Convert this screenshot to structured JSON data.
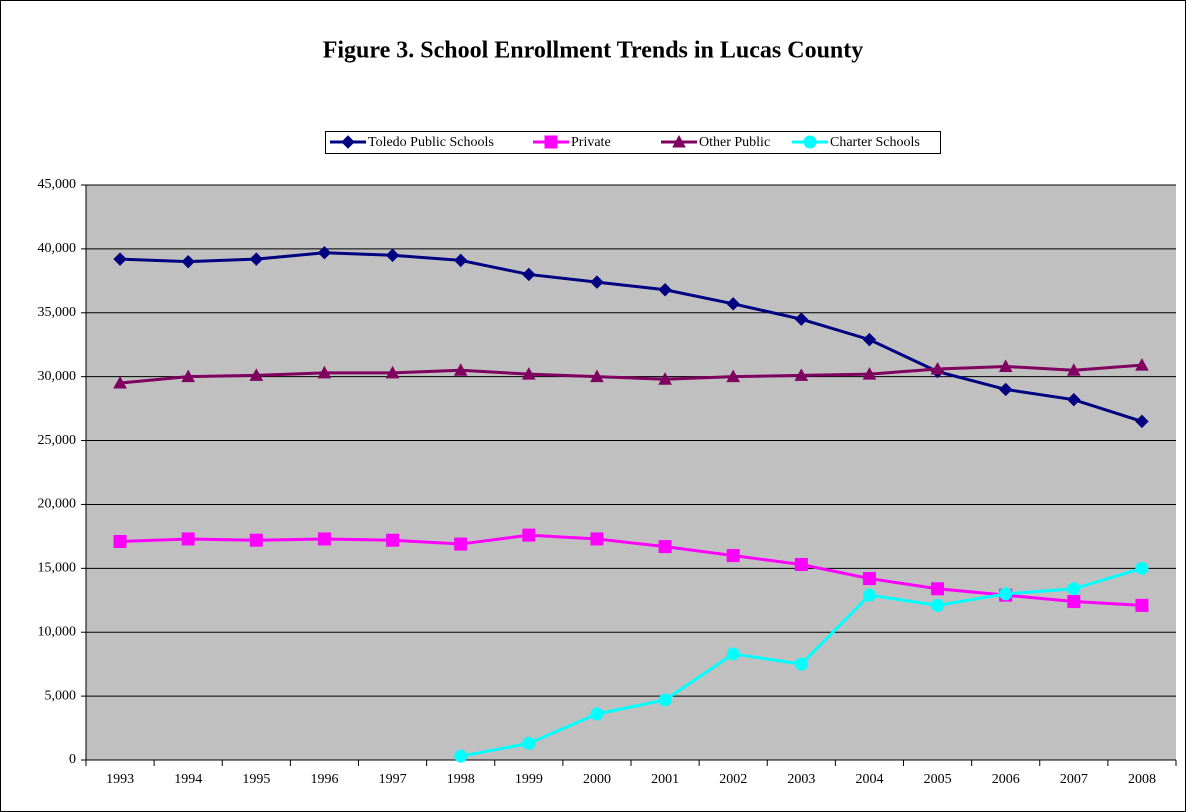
{
  "chart_data": {
    "type": "line",
    "title": "Figure 3. School Enrollment Trends in Lucas County",
    "categories": [
      "1993",
      "1994",
      "1995",
      "1996",
      "1997",
      "1998",
      "1999",
      "2000",
      "2001",
      "2002",
      "2003",
      "2004",
      "2005",
      "2006",
      "2007",
      "2008"
    ],
    "series": [
      {
        "name": "Toledo Public Schools",
        "color": "#000080",
        "marker": "diamond",
        "values": [
          39200,
          39000,
          39200,
          39700,
          39500,
          39100,
          38000,
          37400,
          36800,
          35700,
          34500,
          32900,
          30400,
          29000,
          28200,
          26500
        ]
      },
      {
        "name": "Private",
        "color": "#ff00ff",
        "marker": "square",
        "values": [
          17100,
          17300,
          17200,
          17300,
          17200,
          16900,
          17600,
          17300,
          16700,
          16000,
          15300,
          14200,
          13400,
          12900,
          12400,
          12100
        ]
      },
      {
        "name": "Other Public",
        "color": "#800060",
        "marker": "triangle",
        "values": [
          29500,
          30000,
          30100,
          30300,
          30300,
          30500,
          30200,
          30000,
          29800,
          30000,
          30100,
          30200,
          30600,
          30800,
          30500,
          30900
        ]
      },
      {
        "name": "Charter Schools",
        "color": "#00ffff",
        "marker": "circle",
        "values": [
          null,
          null,
          null,
          null,
          null,
          300,
          1300,
          3600,
          4700,
          8300,
          7500,
          12900,
          12100,
          13000,
          13400,
          15000
        ]
      }
    ],
    "ylim": [
      0,
      45000
    ],
    "yticks": [
      0,
      {
        "value": 5000,
        "label": "5,000"
      },
      {
        "value": 10000,
        "label": "10,000"
      },
      {
        "value": 15000,
        "label": "15,000"
      },
      {
        "value": 20000,
        "label": "20,000"
      },
      {
        "value": 25000,
        "label": "25,000"
      },
      {
        "value": 30000,
        "label": "30,000"
      },
      {
        "value": 35000,
        "label": "35,000"
      },
      {
        "value": 40000,
        "label": "40,000"
      },
      {
        "value": 45000,
        "label": "45,000"
      }
    ],
    "grid": true,
    "legend": "top"
  }
}
